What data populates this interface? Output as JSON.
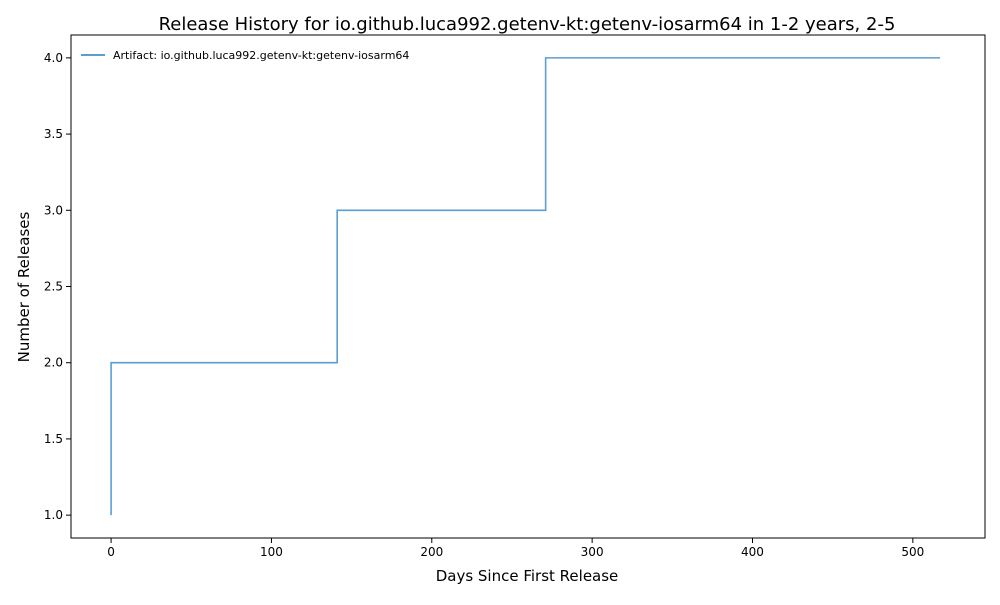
{
  "chart_data": {
    "type": "line",
    "title": "Release History for io.github.luca992.getenv-kt:getenv-iosarm64 in 1-2 years, 2-5",
    "xlabel": "Days Since First Release",
    "ylabel": "Number of Releases",
    "xlim": [
      -25,
      545
    ],
    "ylim": [
      0.85,
      4.15
    ],
    "x_ticks": [
      0,
      100,
      200,
      300,
      400,
      500
    ],
    "x_tick_labels": [
      "0",
      "100",
      "200",
      "300",
      "400",
      "500"
    ],
    "y_ticks": [
      1.0,
      1.5,
      2.0,
      2.5,
      3.0,
      3.5,
      4.0
    ],
    "y_tick_labels": [
      "1.0",
      "1.5",
      "2.0",
      "2.5",
      "3.0",
      "3.5",
      "4.0"
    ],
    "grid": false,
    "legend_position": "top-left",
    "step": "post",
    "series": [
      {
        "name": "Artifact: io.github.luca992.getenv-kt:getenv-iosarm64",
        "color": "#5a9fcf",
        "x": [
          0,
          0,
          141,
          271,
          517
        ],
        "y": [
          1,
          2,
          3,
          4,
          4
        ]
      }
    ]
  }
}
